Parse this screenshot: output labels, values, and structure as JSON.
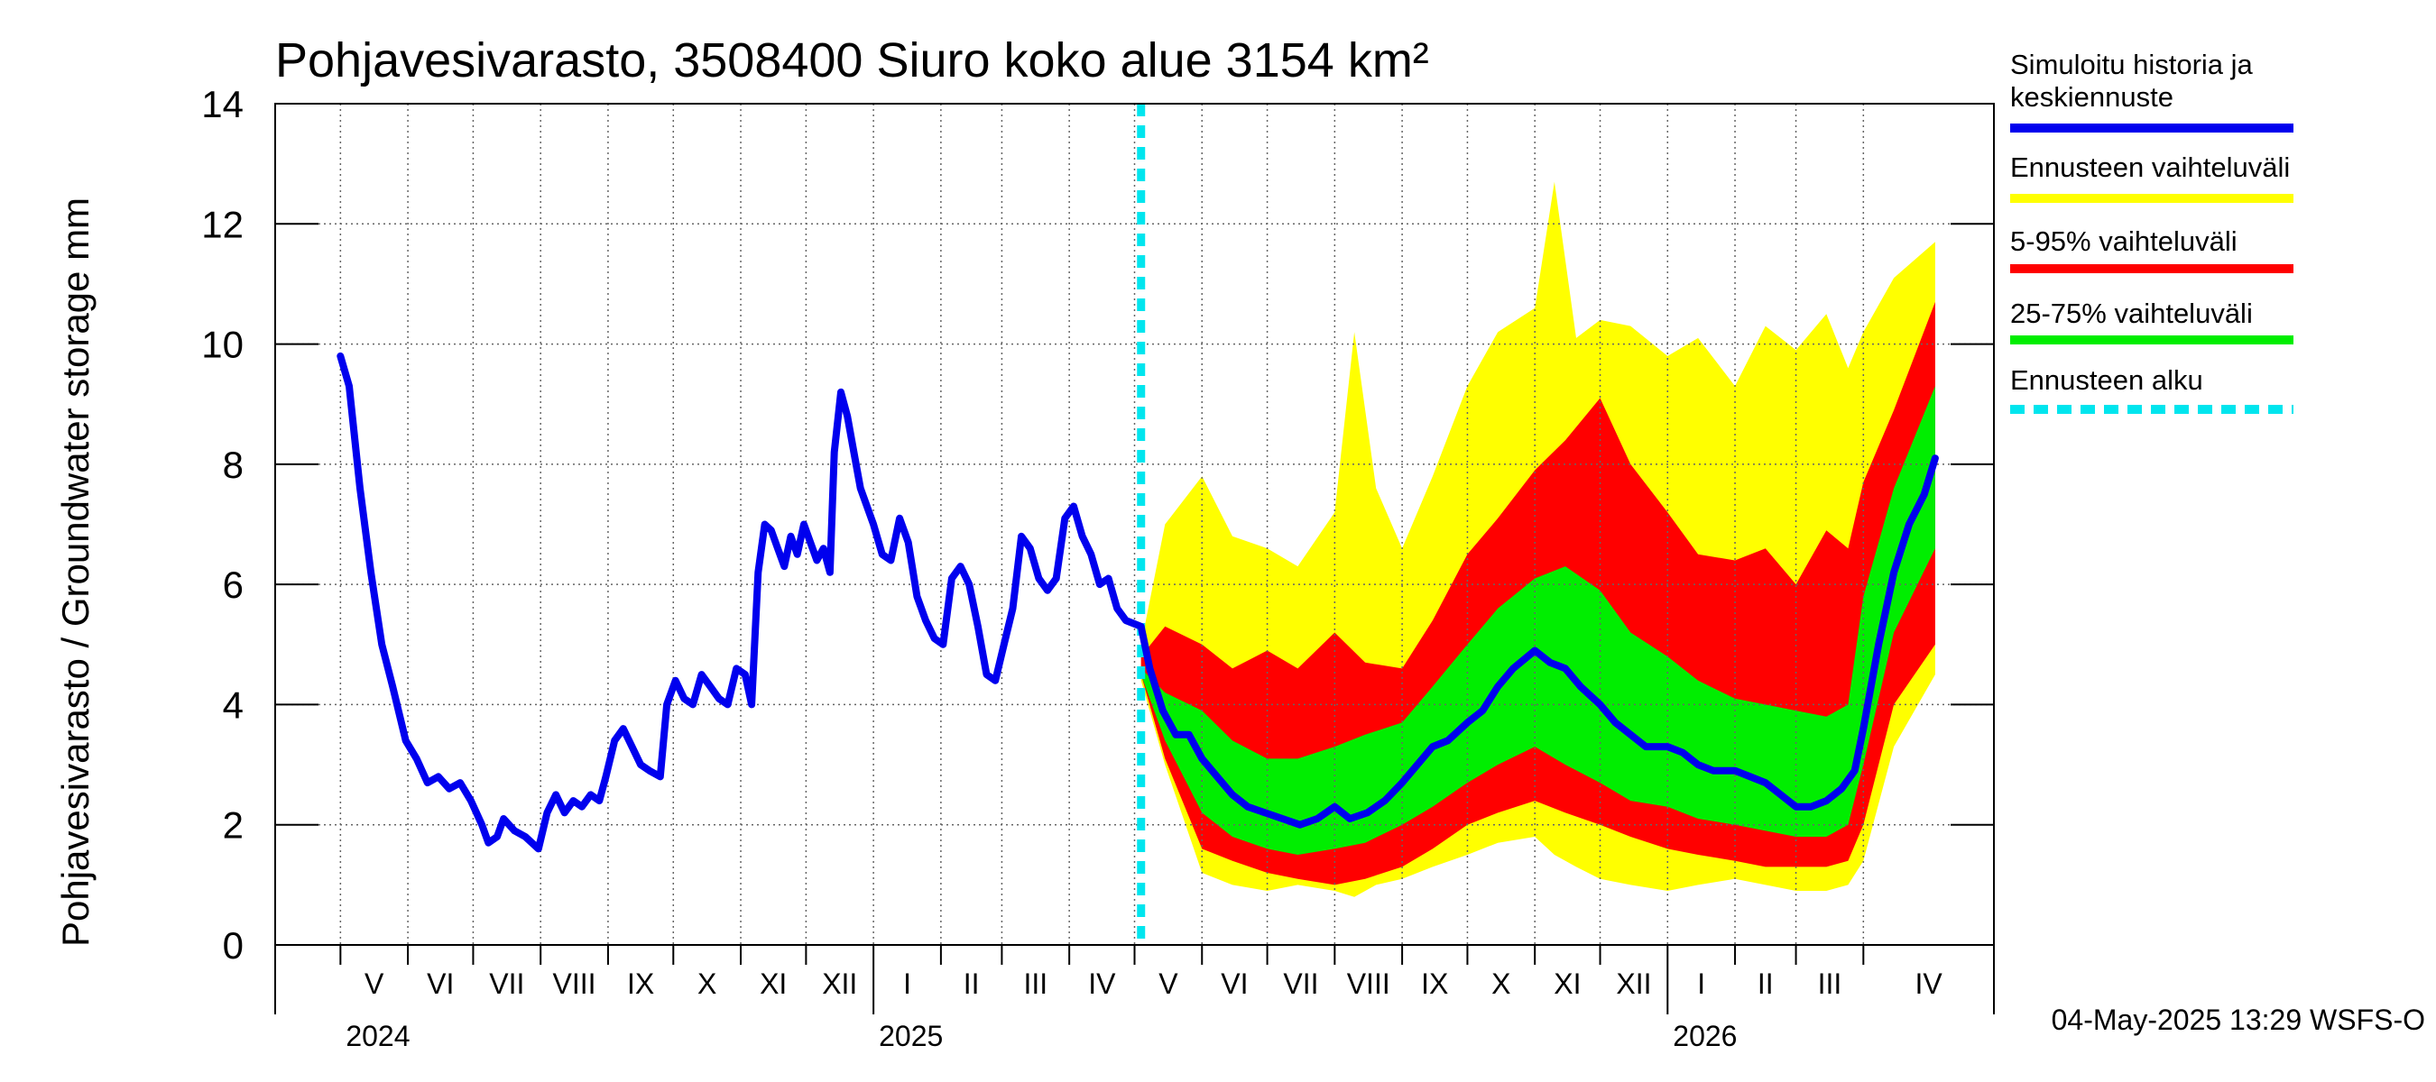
{
  "chart_data": {
    "type": "area",
    "title": "Pohjavesivarasto, 3508400 Siuro koko alue 3154 km²",
    "ylabel": "Pohjavesivarasto / Groundwater storage   mm",
    "ylim": [
      0,
      14
    ],
    "yticks": [
      "0",
      "2",
      "4",
      "6",
      "8",
      "10",
      "12",
      "14"
    ],
    "grid": true,
    "legend_position": "right",
    "x_range": [
      "2024-04-01",
      "2026-05-31"
    ],
    "forecast_start": "2025-05-04",
    "months": [
      {
        "label": "V",
        "start": "2024-05-01"
      },
      {
        "label": "VI",
        "start": "2024-06-01"
      },
      {
        "label": "VII",
        "start": "2024-07-01"
      },
      {
        "label": "VIII",
        "start": "2024-08-01"
      },
      {
        "label": "IX",
        "start": "2024-09-01"
      },
      {
        "label": "X",
        "start": "2024-10-01"
      },
      {
        "label": "XI",
        "start": "2024-11-01"
      },
      {
        "label": "XII",
        "start": "2024-12-01"
      },
      {
        "label": "I",
        "start": "2025-01-01"
      },
      {
        "label": "II",
        "start": "2025-02-01"
      },
      {
        "label": "III",
        "start": "2025-03-01"
      },
      {
        "label": "IV",
        "start": "2025-04-01"
      },
      {
        "label": "V",
        "start": "2025-05-01"
      },
      {
        "label": "VI",
        "start": "2025-06-01"
      },
      {
        "label": "VII",
        "start": "2025-07-01"
      },
      {
        "label": "VIII",
        "start": "2025-08-01"
      },
      {
        "label": "IX",
        "start": "2025-09-01"
      },
      {
        "label": "X",
        "start": "2025-10-01"
      },
      {
        "label": "XI",
        "start": "2025-11-01"
      },
      {
        "label": "XII",
        "start": "2025-12-01"
      },
      {
        "label": "I",
        "start": "2026-01-01"
      },
      {
        "label": "II",
        "start": "2026-02-01"
      },
      {
        "label": "III",
        "start": "2026-03-01"
      },
      {
        "label": "IV",
        "start": "2026-04-01"
      }
    ],
    "years": [
      {
        "label": "2024",
        "date": "2024-05-01"
      },
      {
        "label": "2025",
        "date": "2025-01-01"
      },
      {
        "label": "2026",
        "date": "2026-01-01"
      }
    ],
    "series": [
      {
        "name": "Simuloitu historia ja keskiennuste",
        "color": "#0000ee",
        "points": [
          [
            "2024-05-01",
            9.8
          ],
          [
            "2024-05-05",
            9.3
          ],
          [
            "2024-05-10",
            7.6
          ],
          [
            "2024-05-15",
            6.2
          ],
          [
            "2024-05-20",
            5.0
          ],
          [
            "2024-05-25",
            4.3
          ],
          [
            "2024-05-31",
            3.4
          ],
          [
            "2024-06-05",
            3.1
          ],
          [
            "2024-06-10",
            2.7
          ],
          [
            "2024-06-15",
            2.8
          ],
          [
            "2024-06-20",
            2.6
          ],
          [
            "2024-06-25",
            2.7
          ],
          [
            "2024-06-30",
            2.4
          ],
          [
            "2024-07-05",
            2.0
          ],
          [
            "2024-07-08",
            1.7
          ],
          [
            "2024-07-12",
            1.8
          ],
          [
            "2024-07-15",
            2.1
          ],
          [
            "2024-07-20",
            1.9
          ],
          [
            "2024-07-25",
            1.8
          ],
          [
            "2024-07-31",
            1.6
          ],
          [
            "2024-08-04",
            2.2
          ],
          [
            "2024-08-08",
            2.5
          ],
          [
            "2024-08-12",
            2.2
          ],
          [
            "2024-08-16",
            2.4
          ],
          [
            "2024-08-20",
            2.3
          ],
          [
            "2024-08-24",
            2.5
          ],
          [
            "2024-08-28",
            2.4
          ],
          [
            "2024-08-31",
            2.8
          ],
          [
            "2024-09-04",
            3.4
          ],
          [
            "2024-09-08",
            3.6
          ],
          [
            "2024-09-12",
            3.3
          ],
          [
            "2024-09-16",
            3.0
          ],
          [
            "2024-09-20",
            2.9
          ],
          [
            "2024-09-25",
            2.8
          ],
          [
            "2024-09-28",
            4.0
          ],
          [
            "2024-10-02",
            4.4
          ],
          [
            "2024-10-06",
            4.1
          ],
          [
            "2024-10-10",
            4.0
          ],
          [
            "2024-10-14",
            4.5
          ],
          [
            "2024-10-18",
            4.3
          ],
          [
            "2024-10-22",
            4.1
          ],
          [
            "2024-10-26",
            4.0
          ],
          [
            "2024-10-30",
            4.6
          ],
          [
            "2024-11-03",
            4.5
          ],
          [
            "2024-11-06",
            4.0
          ],
          [
            "2024-11-09",
            6.2
          ],
          [
            "2024-11-12",
            7.0
          ],
          [
            "2024-11-15",
            6.9
          ],
          [
            "2024-11-18",
            6.6
          ],
          [
            "2024-11-21",
            6.3
          ],
          [
            "2024-11-24",
            6.8
          ],
          [
            "2024-11-27",
            6.5
          ],
          [
            "2024-11-30",
            7.0
          ],
          [
            "2024-12-03",
            6.7
          ],
          [
            "2024-12-06",
            6.4
          ],
          [
            "2024-12-09",
            6.6
          ],
          [
            "2024-12-12",
            6.2
          ],
          [
            "2024-12-14",
            8.2
          ],
          [
            "2024-12-17",
            9.2
          ],
          [
            "2024-12-20",
            8.8
          ],
          [
            "2024-12-23",
            8.2
          ],
          [
            "2024-12-26",
            7.6
          ],
          [
            "2024-12-29",
            7.3
          ],
          [
            "2025-01-01",
            7.0
          ],
          [
            "2025-01-05",
            6.5
          ],
          [
            "2025-01-09",
            6.4
          ],
          [
            "2025-01-13",
            7.1
          ],
          [
            "2025-01-17",
            6.7
          ],
          [
            "2025-01-21",
            5.8
          ],
          [
            "2025-01-25",
            5.4
          ],
          [
            "2025-01-29",
            5.1
          ],
          [
            "2025-02-02",
            5.0
          ],
          [
            "2025-02-06",
            6.1
          ],
          [
            "2025-02-10",
            6.3
          ],
          [
            "2025-02-14",
            6.0
          ],
          [
            "2025-02-18",
            5.3
          ],
          [
            "2025-02-22",
            4.5
          ],
          [
            "2025-02-26",
            4.4
          ],
          [
            "2025-03-02",
            5.0
          ],
          [
            "2025-03-06",
            5.6
          ],
          [
            "2025-03-10",
            6.8
          ],
          [
            "2025-03-14",
            6.6
          ],
          [
            "2025-03-18",
            6.1
          ],
          [
            "2025-03-22",
            5.9
          ],
          [
            "2025-03-26",
            6.1
          ],
          [
            "2025-03-30",
            7.1
          ],
          [
            "2025-04-03",
            7.3
          ],
          [
            "2025-04-07",
            6.8
          ],
          [
            "2025-04-11",
            6.5
          ],
          [
            "2025-04-15",
            6.0
          ],
          [
            "2025-04-19",
            6.1
          ],
          [
            "2025-04-23",
            5.6
          ],
          [
            "2025-04-27",
            5.4
          ],
          [
            "2025-05-04",
            5.3
          ],
          [
            "2025-05-08",
            4.6
          ],
          [
            "2025-05-14",
            3.9
          ],
          [
            "2025-05-20",
            3.5
          ],
          [
            "2025-05-26",
            3.5
          ],
          [
            "2025-06-01",
            3.1
          ],
          [
            "2025-06-08",
            2.8
          ],
          [
            "2025-06-15",
            2.5
          ],
          [
            "2025-06-22",
            2.3
          ],
          [
            "2025-06-30",
            2.2
          ],
          [
            "2025-07-08",
            2.1
          ],
          [
            "2025-07-16",
            2.0
          ],
          [
            "2025-07-24",
            2.1
          ],
          [
            "2025-08-01",
            2.3
          ],
          [
            "2025-08-08",
            2.1
          ],
          [
            "2025-08-16",
            2.2
          ],
          [
            "2025-08-24",
            2.4
          ],
          [
            "2025-09-01",
            2.7
          ],
          [
            "2025-09-08",
            3.0
          ],
          [
            "2025-09-15",
            3.3
          ],
          [
            "2025-09-22",
            3.4
          ],
          [
            "2025-10-01",
            3.7
          ],
          [
            "2025-10-08",
            3.9
          ],
          [
            "2025-10-15",
            4.3
          ],
          [
            "2025-10-22",
            4.6
          ],
          [
            "2025-11-01",
            4.9
          ],
          [
            "2025-11-08",
            4.7
          ],
          [
            "2025-11-15",
            4.6
          ],
          [
            "2025-11-22",
            4.3
          ],
          [
            "2025-12-01",
            4.0
          ],
          [
            "2025-12-08",
            3.7
          ],
          [
            "2025-12-15",
            3.5
          ],
          [
            "2025-12-22",
            3.3
          ],
          [
            "2026-01-01",
            3.3
          ],
          [
            "2026-01-08",
            3.2
          ],
          [
            "2026-01-15",
            3.0
          ],
          [
            "2026-01-22",
            2.9
          ],
          [
            "2026-02-01",
            2.9
          ],
          [
            "2026-02-08",
            2.8
          ],
          [
            "2026-02-15",
            2.7
          ],
          [
            "2026-02-22",
            2.5
          ],
          [
            "2026-03-01",
            2.3
          ],
          [
            "2026-03-08",
            2.3
          ],
          [
            "2026-03-15",
            2.4
          ],
          [
            "2026-03-22",
            2.6
          ],
          [
            "2026-03-28",
            2.9
          ],
          [
            "2026-04-01",
            3.6
          ],
          [
            "2026-04-08",
            5.0
          ],
          [
            "2026-04-15",
            6.2
          ],
          [
            "2026-04-22",
            7.0
          ],
          [
            "2026-04-29",
            7.5
          ],
          [
            "2026-05-04",
            8.1
          ]
        ]
      },
      {
        "name": "Ennusteen vaihteluväli",
        "color": "#ffff00",
        "dates": [
          "2025-05-04",
          "2025-05-15",
          "2025-06-01",
          "2025-06-15",
          "2025-07-01",
          "2025-07-15",
          "2025-08-01",
          "2025-08-10",
          "2025-08-20",
          "2025-09-01",
          "2025-09-15",
          "2025-10-01",
          "2025-10-15",
          "2025-11-01",
          "2025-11-10",
          "2025-11-20",
          "2025-12-01",
          "2025-12-15",
          "2026-01-01",
          "2026-01-15",
          "2026-02-01",
          "2026-02-15",
          "2026-03-01",
          "2026-03-15",
          "2026-03-25",
          "2026-04-01",
          "2026-04-15",
          "2026-05-04"
        ],
        "upper": [
          5.0,
          7.0,
          7.8,
          6.8,
          6.6,
          6.3,
          7.2,
          10.2,
          7.6,
          6.6,
          7.8,
          9.3,
          10.2,
          10.6,
          12.7,
          10.1,
          10.4,
          10.3,
          9.8,
          10.1,
          9.3,
          10.3,
          9.9,
          10.5,
          9.6,
          10.2,
          11.1,
          11.7
        ],
        "lower": [
          4.4,
          3.0,
          1.2,
          1.0,
          0.9,
          1.0,
          0.9,
          0.8,
          1.0,
          1.1,
          1.3,
          1.5,
          1.7,
          1.8,
          1.5,
          1.3,
          1.1,
          1.0,
          0.9,
          1.0,
          1.1,
          1.0,
          0.9,
          0.9,
          1.0,
          1.4,
          3.3,
          4.5
        ]
      },
      {
        "name": "5-95% vaihteluväli",
        "color": "#ff0000",
        "dates": [
          "2025-05-04",
          "2025-05-15",
          "2025-06-01",
          "2025-06-15",
          "2025-07-01",
          "2025-07-15",
          "2025-08-01",
          "2025-08-15",
          "2025-09-01",
          "2025-09-15",
          "2025-10-01",
          "2025-10-15",
          "2025-11-01",
          "2025-11-15",
          "2025-12-01",
          "2025-12-15",
          "2026-01-01",
          "2026-01-15",
          "2026-02-01",
          "2026-02-15",
          "2026-03-01",
          "2026-03-15",
          "2026-03-25",
          "2026-04-01",
          "2026-04-15",
          "2026-05-04"
        ],
        "upper": [
          4.8,
          5.3,
          5.0,
          4.6,
          4.9,
          4.6,
          5.2,
          4.7,
          4.6,
          5.4,
          6.5,
          7.1,
          7.9,
          8.4,
          9.1,
          8.0,
          7.2,
          6.5,
          6.4,
          6.6,
          6.0,
          6.9,
          6.6,
          7.7,
          8.9,
          10.7
        ],
        "lower": [
          4.5,
          3.1,
          1.6,
          1.4,
          1.2,
          1.1,
          1.0,
          1.1,
          1.3,
          1.6,
          2.0,
          2.2,
          2.4,
          2.2,
          2.0,
          1.8,
          1.6,
          1.5,
          1.4,
          1.3,
          1.3,
          1.3,
          1.4,
          2.0,
          4.0,
          5.0
        ]
      },
      {
        "name": "25-75% vaihteluväli",
        "color": "#00ee00",
        "dates": [
          "2025-05-04",
          "2025-05-15",
          "2025-06-01",
          "2025-06-15",
          "2025-07-01",
          "2025-07-15",
          "2025-08-01",
          "2025-08-15",
          "2025-09-01",
          "2025-09-15",
          "2025-10-01",
          "2025-10-15",
          "2025-11-01",
          "2025-11-15",
          "2025-12-01",
          "2025-12-15",
          "2026-01-01",
          "2026-01-15",
          "2026-02-01",
          "2026-02-15",
          "2026-03-01",
          "2026-03-15",
          "2026-03-25",
          "2026-04-01",
          "2026-04-15",
          "2026-05-04"
        ],
        "upper": [
          4.6,
          4.2,
          3.9,
          3.4,
          3.1,
          3.1,
          3.3,
          3.5,
          3.7,
          4.3,
          5.0,
          5.6,
          6.1,
          6.3,
          5.9,
          5.2,
          4.8,
          4.4,
          4.1,
          4.0,
          3.9,
          3.8,
          4.0,
          5.8,
          7.6,
          9.3
        ],
        "lower": [
          4.5,
          3.4,
          2.2,
          1.8,
          1.6,
          1.5,
          1.6,
          1.7,
          2.0,
          2.3,
          2.7,
          3.0,
          3.3,
          3.0,
          2.7,
          2.4,
          2.3,
          2.1,
          2.0,
          1.9,
          1.8,
          1.8,
          2.0,
          3.0,
          5.2,
          6.6
        ]
      },
      {
        "name": "Ennusteen alku",
        "color": "#00e5ee",
        "date": "2025-05-04"
      }
    ]
  },
  "legend": {
    "items": [
      {
        "lines": [
          "Simuloitu historia ja",
          "keskiennuste"
        ],
        "color": "#0000ee",
        "style": "solid"
      },
      {
        "lines": [
          "Ennusteen vaihteluväli"
        ],
        "color": "#ffff00",
        "style": "solid"
      },
      {
        "lines": [
          "5-95% vaihteluväli"
        ],
        "color": "#ff0000",
        "style": "solid"
      },
      {
        "lines": [
          "25-75% vaihteluväli"
        ],
        "color": "#00ee00",
        "style": "solid"
      },
      {
        "lines": [
          "Ennusteen alku"
        ],
        "color": "#00e5ee",
        "style": "dashed"
      }
    ]
  },
  "footer": "04-May-2025 13:29 WSFS-O"
}
